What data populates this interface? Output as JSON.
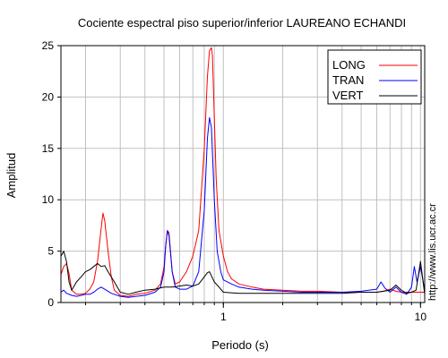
{
  "chart_data": {
    "type": "line",
    "title": "Cociente espectral piso superior/inferior LAUREANO ECHANDI",
    "xlabel": "Periodo (s)",
    "ylabel": "Amplitud",
    "xscale": "log",
    "xlim": [
      0.15,
      10.5
    ],
    "ylim": [
      0,
      25
    ],
    "grid": true,
    "legend_placement": "top-right",
    "xtick_labels": [
      {
        "value": 1,
        "label": "1"
      },
      {
        "value": 10,
        "label": "10"
      }
    ],
    "xminor_ticks": [
      0.2,
      0.3,
      0.4,
      0.5,
      0.6,
      0.7,
      0.8,
      0.9,
      2,
      3,
      4,
      5,
      6,
      7,
      8,
      9
    ],
    "yticks": [
      0,
      5,
      10,
      15,
      20,
      25
    ],
    "series": [
      {
        "name": "LONG",
        "color": "#ff0000",
        "x": [
          0.15,
          0.155,
          0.16,
          0.165,
          0.17,
          0.18,
          0.19,
          0.2,
          0.21,
          0.22,
          0.23,
          0.24,
          0.245,
          0.25,
          0.26,
          0.27,
          0.28,
          0.3,
          0.33,
          0.36,
          0.4,
          0.45,
          0.48,
          0.5,
          0.51,
          0.52,
          0.53,
          0.55,
          0.57,
          0.6,
          0.65,
          0.7,
          0.75,
          0.8,
          0.83,
          0.85,
          0.87,
          0.88,
          0.9,
          0.92,
          0.95,
          1.0,
          1.05,
          1.1,
          1.2,
          1.4,
          1.6,
          2.0,
          2.5,
          3.0,
          4.0,
          5.0,
          6.0,
          6.5,
          7.0,
          7.5,
          8.0,
          9.0,
          9.5,
          10.0,
          10.5
        ],
        "y": [
          2.7,
          3.5,
          3.8,
          2.8,
          1.2,
          0.8,
          0.8,
          0.9,
          1.3,
          2.0,
          4.0,
          7.2,
          8.7,
          8.0,
          5.0,
          2.5,
          1.2,
          0.7,
          0.6,
          0.8,
          0.9,
          1.2,
          1.8,
          3.5,
          5.5,
          7.0,
          6.8,
          3.0,
          1.8,
          2.0,
          3.0,
          4.5,
          7.0,
          15.0,
          22.0,
          24.5,
          24.8,
          24.0,
          18.0,
          12.0,
          7.0,
          4.5,
          3.0,
          2.3,
          1.8,
          1.5,
          1.3,
          1.2,
          1.1,
          1.1,
          1.0,
          1.0,
          1.0,
          1.1,
          1.3,
          1.1,
          1.0,
          1.0,
          1.0,
          1.0,
          1.0
        ]
      },
      {
        "name": "TRAN",
        "color": "#0000ff",
        "x": [
          0.15,
          0.155,
          0.16,
          0.17,
          0.18,
          0.19,
          0.2,
          0.21,
          0.22,
          0.23,
          0.24,
          0.25,
          0.27,
          0.3,
          0.33,
          0.36,
          0.4,
          0.45,
          0.48,
          0.5,
          0.51,
          0.52,
          0.53,
          0.55,
          0.57,
          0.6,
          0.65,
          0.7,
          0.75,
          0.8,
          0.83,
          0.85,
          0.87,
          0.9,
          0.93,
          0.97,
          1.0,
          1.1,
          1.2,
          1.4,
          1.6,
          2.0,
          2.5,
          3.0,
          4.0,
          5.0,
          6.0,
          6.3,
          6.6,
          7.0,
          7.5,
          8.0,
          8.5,
          9.0,
          9.3,
          9.6,
          10.0,
          10.5
        ],
        "y": [
          1.0,
          1.2,
          0.9,
          0.7,
          0.6,
          0.7,
          0.8,
          0.8,
          1.0,
          1.3,
          1.5,
          1.3,
          0.9,
          0.6,
          0.5,
          0.6,
          0.7,
          1.0,
          1.5,
          3.0,
          5.5,
          7.0,
          6.5,
          3.0,
          1.5,
          1.3,
          1.3,
          1.6,
          3.0,
          9.0,
          16.0,
          18.0,
          17.0,
          10.0,
          5.0,
          3.0,
          2.2,
          1.8,
          1.5,
          1.3,
          1.2,
          1.1,
          1.0,
          1.0,
          1.0,
          1.1,
          1.3,
          2.0,
          1.4,
          1.0,
          1.5,
          1.0,
          0.8,
          1.5,
          3.5,
          2.0,
          3.5,
          1.2
        ]
      },
      {
        "name": "VERT",
        "color": "#000000",
        "x": [
          0.15,
          0.155,
          0.16,
          0.165,
          0.17,
          0.18,
          0.19,
          0.2,
          0.21,
          0.22,
          0.23,
          0.24,
          0.25,
          0.26,
          0.27,
          0.28,
          0.3,
          0.33,
          0.36,
          0.4,
          0.45,
          0.5,
          0.55,
          0.6,
          0.65,
          0.7,
          0.75,
          0.8,
          0.83,
          0.85,
          0.87,
          0.9,
          0.95,
          1.0,
          1.2,
          1.5,
          2.0,
          3.0,
          4.0,
          5.0,
          6.0,
          7.0,
          7.5,
          8.0,
          8.5,
          9.0,
          9.5,
          10.0,
          10.5
        ],
        "y": [
          4.5,
          5.0,
          4.0,
          2.0,
          1.2,
          2.0,
          2.5,
          3.0,
          3.2,
          3.5,
          3.8,
          3.5,
          3.6,
          3.0,
          2.5,
          2.0,
          1.0,
          0.8,
          1.0,
          1.2,
          1.3,
          1.5,
          1.5,
          1.6,
          1.7,
          1.6,
          1.8,
          2.5,
          2.9,
          3.0,
          2.6,
          2.0,
          1.5,
          1.0,
          0.9,
          0.9,
          0.9,
          0.9,
          0.9,
          1.0,
          1.0,
          1.2,
          1.7,
          1.2,
          0.9,
          1.0,
          1.2,
          4.0,
          0.8
        ]
      }
    ]
  },
  "credit": "http://www.lis.ucr.ac.cr"
}
